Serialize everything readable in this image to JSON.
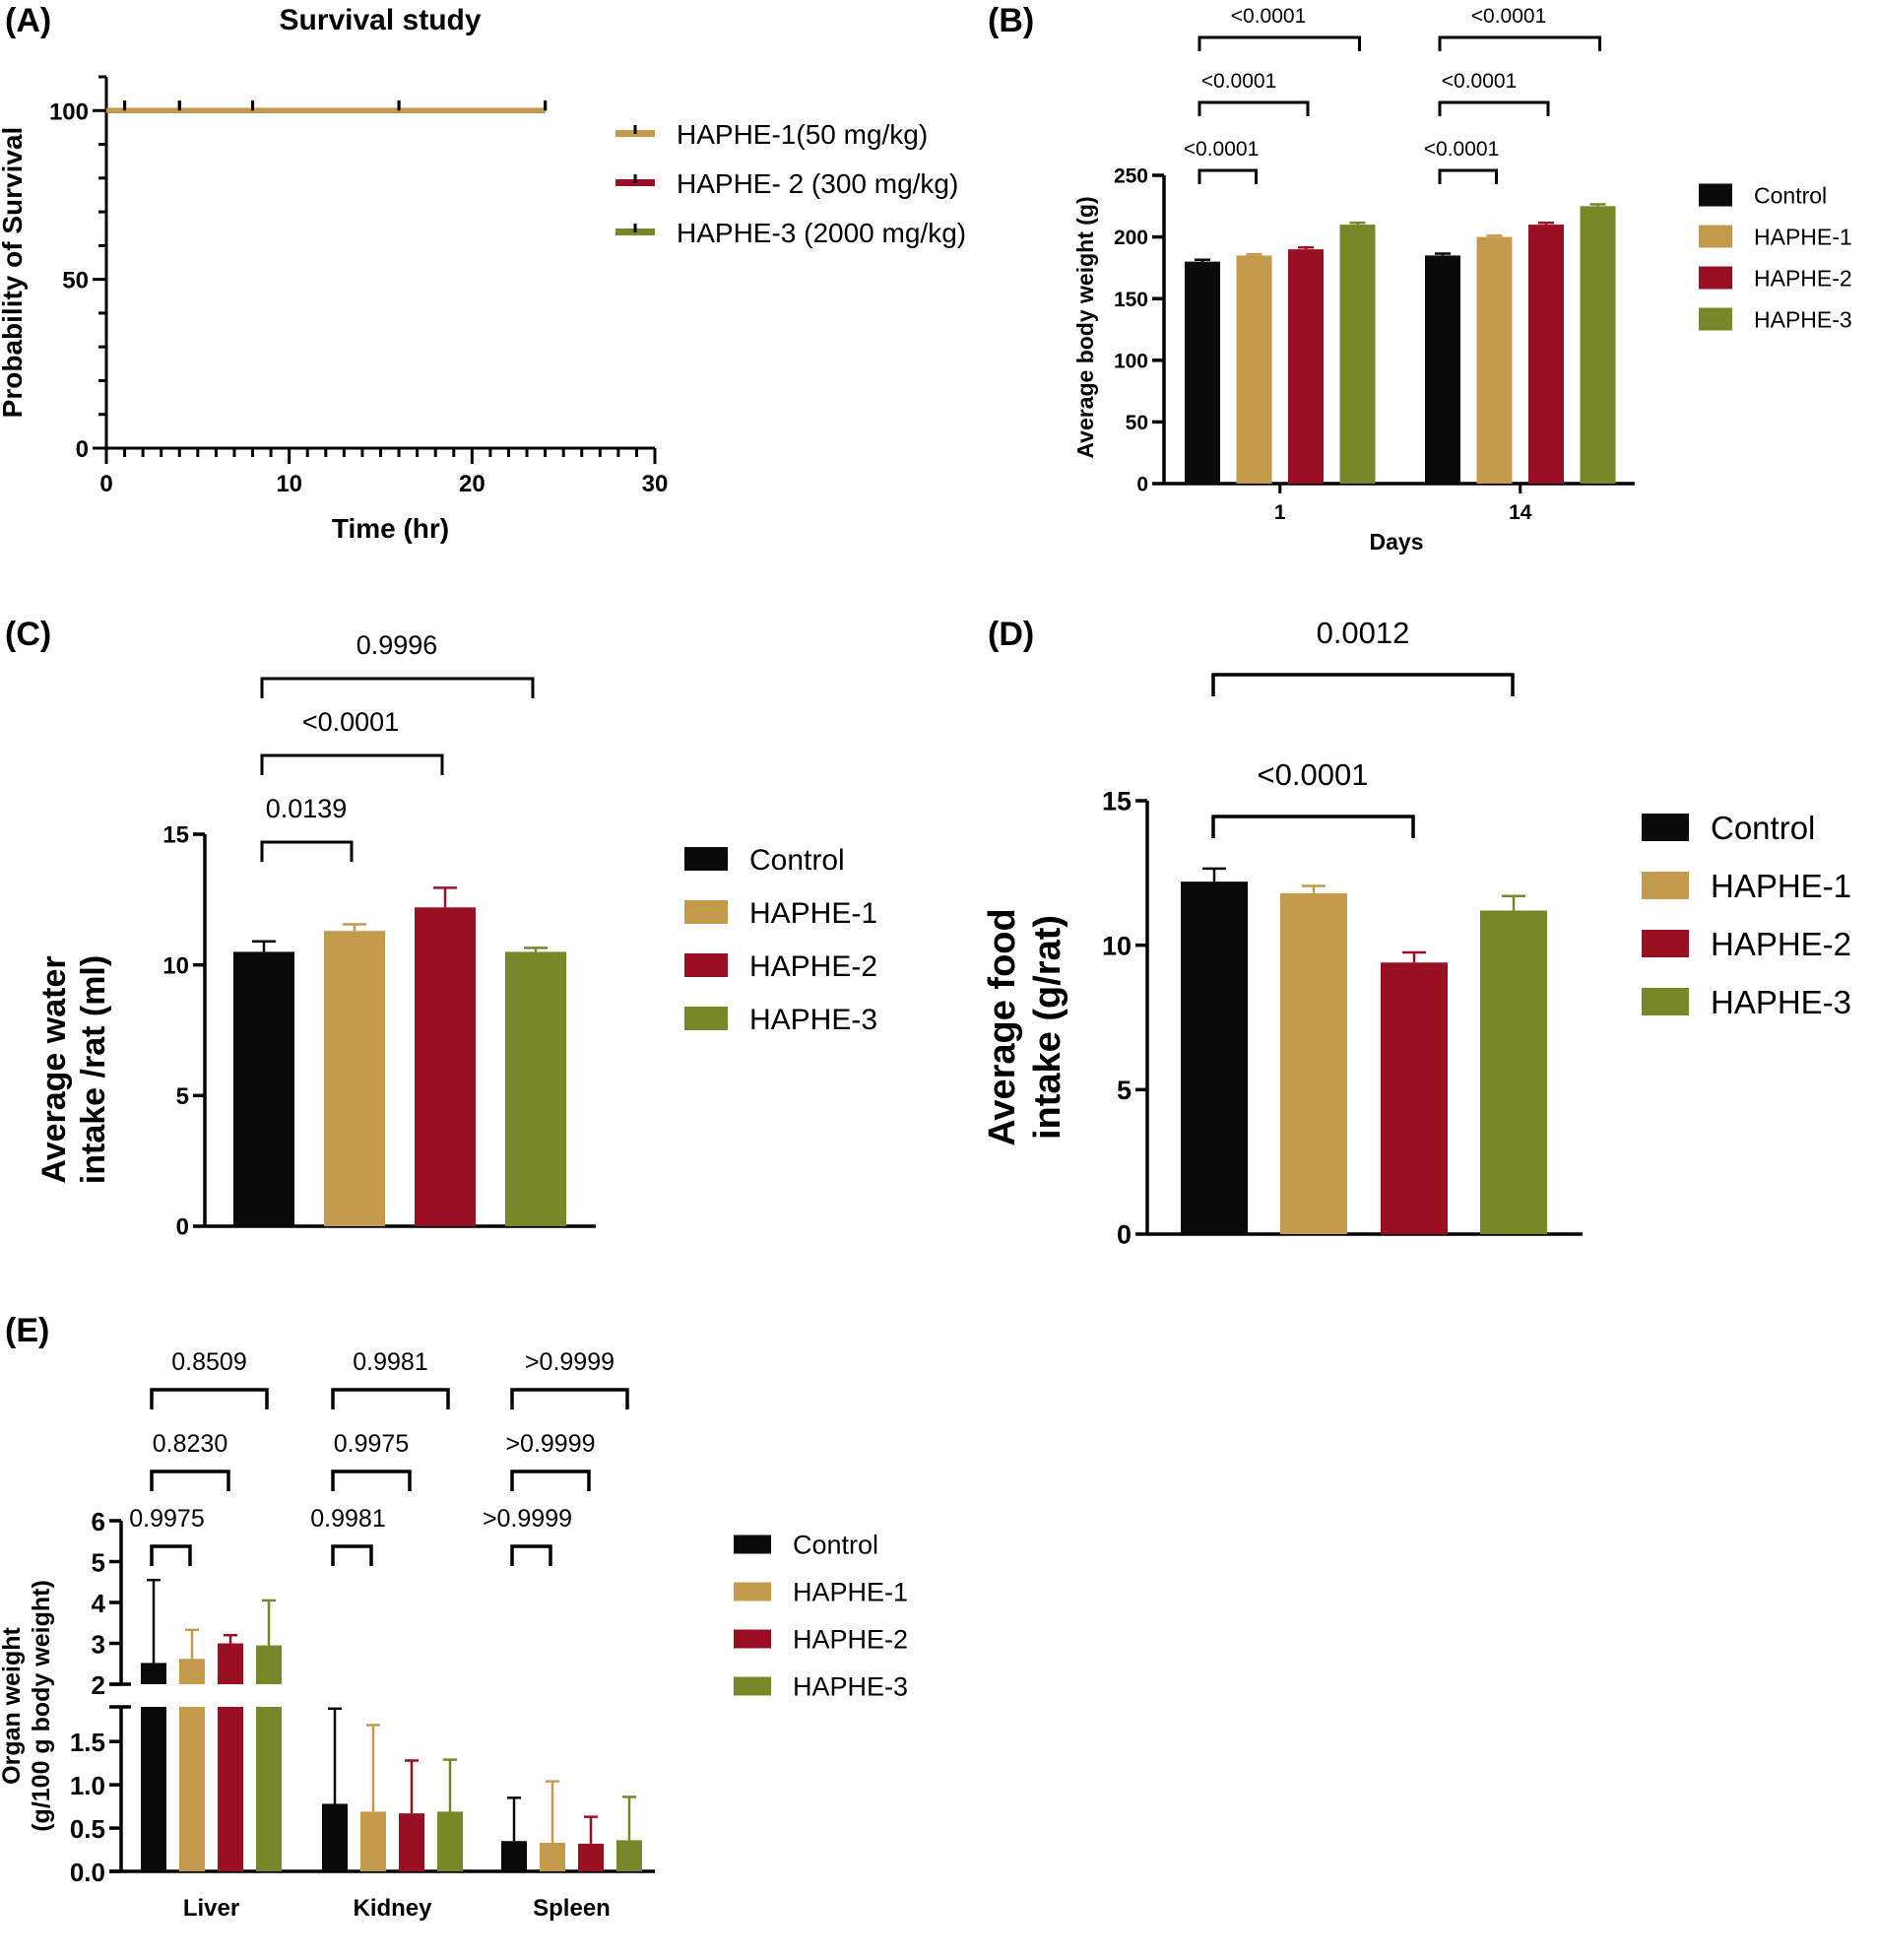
{
  "colors": {
    "Control": "#0a0a0a",
    "HAPHE-1": "#c49b4c",
    "HAPHE-2": "#9a1022",
    "HAPHE-3": "#778828",
    "axis": "#000000"
  },
  "chart_data": [
    {
      "panel": "(A)",
      "type": "line",
      "title": "Survival study",
      "xlabel": "Time (hr)",
      "ylabel": "Probability of Survival",
      "xlim": [
        0,
        30
      ],
      "ylim": [
        0,
        110
      ],
      "xticks": [
        0,
        10,
        20,
        30
      ],
      "yticks": [
        0,
        50,
        100
      ],
      "grid": false,
      "legend_position": "right",
      "series": [
        {
          "name": "HAPHE-1(50 mg/kg)",
          "color_key": "HAPHE-1",
          "x": [
            0,
            24
          ],
          "y": [
            100,
            100
          ],
          "censor_marks_x": [
            1,
            4,
            8,
            16,
            24
          ]
        },
        {
          "name": "HAPHE- 2 (300 mg/kg)",
          "color_key": "HAPHE-2",
          "x": [
            0,
            24
          ],
          "y": [
            100,
            100
          ],
          "censor_marks_x": [
            1,
            4,
            8,
            16,
            24
          ]
        },
        {
          "name": "HAPHE-3 (2000 mg/kg)",
          "color_key": "HAPHE-3",
          "x": [
            0,
            24
          ],
          "y": [
            100,
            100
          ],
          "censor_marks_x": [
            1,
            4,
            8,
            16,
            24
          ]
        }
      ]
    },
    {
      "panel": "(B)",
      "type": "bar",
      "title": "",
      "xlabel": "Days",
      "ylabel": "Average body weight (g)",
      "ylim": [
        0,
        250
      ],
      "yticks": [
        0,
        50,
        100,
        150,
        200,
        250
      ],
      "categories": [
        "1",
        "14"
      ],
      "legend_position": "right",
      "series": [
        {
          "name": "Control",
          "values": [
            180,
            185
          ],
          "errors": [
            1.5,
            1.5
          ]
        },
        {
          "name": "HAPHE-1",
          "values": [
            185,
            200
          ],
          "errors": [
            1,
            1
          ]
        },
        {
          "name": "HAPHE-2",
          "values": [
            190,
            210
          ],
          "errors": [
            1.5,
            1.5
          ]
        },
        {
          "name": "HAPHE-3",
          "values": [
            210,
            225
          ],
          "errors": [
            1.5,
            1.5
          ]
        }
      ],
      "comparisons": [
        {
          "category": "1",
          "from": "Control",
          "to": "HAPHE-1",
          "label": "<0.0001"
        },
        {
          "category": "1",
          "from": "Control",
          "to": "HAPHE-2",
          "label": "<0.0001"
        },
        {
          "category": "1",
          "from": "Control",
          "to": "HAPHE-3",
          "label": "<0.0001"
        },
        {
          "category": "14",
          "from": "Control",
          "to": "HAPHE-1",
          "label": "<0.0001"
        },
        {
          "category": "14",
          "from": "Control",
          "to": "HAPHE-2",
          "label": "<0.0001"
        },
        {
          "category": "14",
          "from": "Control",
          "to": "HAPHE-3",
          "label": "<0.0001"
        }
      ]
    },
    {
      "panel": "(C)",
      "type": "bar",
      "title": "",
      "xlabel": "",
      "ylabel": "Average water intake /rat (ml)",
      "ylabel_lines": [
        "Average water",
        "intake /rat (ml)"
      ],
      "ylim": [
        0,
        15
      ],
      "yticks": [
        0,
        5,
        10,
        15
      ],
      "categories": [
        "Control",
        "HAPHE-1",
        "HAPHE-2",
        "HAPHE-3"
      ],
      "values": [
        10.5,
        11.3,
        12.2,
        10.5
      ],
      "errors": [
        0.4,
        0.25,
        0.75,
        0.15
      ],
      "legend_position": "right",
      "comparisons": [
        {
          "from": "Control",
          "to": "HAPHE-1",
          "label": "0.0139"
        },
        {
          "from": "Control",
          "to": "HAPHE-2",
          "label": "<0.0001"
        },
        {
          "from": "Control",
          "to": "HAPHE-3",
          "label": "0.9996"
        }
      ]
    },
    {
      "panel": "(D)",
      "type": "bar",
      "title": "",
      "xlabel": "",
      "ylabel": "Average food intake (g/rat)",
      "ylabel_lines": [
        "Average food",
        "intake (g/rat)"
      ],
      "ylim": [
        0,
        15
      ],
      "yticks": [
        0,
        5,
        10,
        15
      ],
      "categories": [
        "Control",
        "HAPHE-1",
        "HAPHE-2",
        "HAPHE-3"
      ],
      "values": [
        12.2,
        11.8,
        9.4,
        11.2
      ],
      "errors": [
        0.45,
        0.25,
        0.35,
        0.5
      ],
      "legend_position": "right",
      "comparisons": [
        {
          "from": "Control",
          "to": "HAPHE-2",
          "label": "<0.0001"
        },
        {
          "from": "Control",
          "to": "HAPHE-3",
          "label": "0.0012"
        }
      ]
    },
    {
      "panel": "(E)",
      "type": "bar",
      "title": "",
      "xlabel": "",
      "ylabel": "Organ weight (g/100 g body weight)",
      "ylabel_lines": [
        "Organ weight",
        "(g/100 g body weight)"
      ],
      "axis_break": {
        "lower": [
          0,
          1.9
        ],
        "upper": [
          2,
          6
        ]
      },
      "yticks_lower": [
        "0.0",
        "0.5",
        "1.0",
        "1.5"
      ],
      "yticks_upper": [
        "2",
        "3",
        "4",
        "5",
        "6"
      ],
      "categories": [
        "Liver",
        "Kidney",
        "Spleen"
      ],
      "legend_position": "right",
      "series": [
        {
          "name": "Control",
          "values": [
            2.52,
            0.78,
            0.35
          ],
          "errors": [
            2.03,
            1.1,
            0.5
          ]
        },
        {
          "name": "HAPHE-1",
          "values": [
            2.62,
            0.69,
            0.33
          ],
          "errors": [
            0.71,
            1.0,
            0.71
          ]
        },
        {
          "name": "HAPHE-2",
          "values": [
            3.0,
            0.67,
            0.32
          ],
          "errors": [
            0.2,
            0.61,
            0.31
          ]
        },
        {
          "name": "HAPHE-3",
          "values": [
            2.95,
            0.69,
            0.36
          ],
          "errors": [
            1.1,
            0.6,
            0.5
          ]
        }
      ],
      "comparisons": [
        {
          "category": "Liver",
          "from": "Control",
          "to": "HAPHE-1",
          "label": "0.9975"
        },
        {
          "category": "Liver",
          "from": "Control",
          "to": "HAPHE-2",
          "label": "0.8230"
        },
        {
          "category": "Liver",
          "from": "Control",
          "to": "HAPHE-3",
          "label": "0.8509"
        },
        {
          "category": "Kidney",
          "from": "Control",
          "to": "HAPHE-1",
          "label": "0.9981"
        },
        {
          "category": "Kidney",
          "from": "Control",
          "to": "HAPHE-2",
          "label": "0.9975"
        },
        {
          "category": "Kidney",
          "from": "Control",
          "to": "HAPHE-3",
          "label": "0.9981"
        },
        {
          "category": "Spleen",
          "from": "Control",
          "to": "HAPHE-1",
          "label": ">0.9999"
        },
        {
          "category": "Spleen",
          "from": "Control",
          "to": "HAPHE-2",
          "label": ">0.9999"
        },
        {
          "category": "Spleen",
          "from": "Control",
          "to": "HAPHE-3",
          "label": ">0.9999"
        }
      ]
    }
  ],
  "legend_groups": [
    "Control",
    "HAPHE-1",
    "HAPHE-2",
    "HAPHE-3"
  ]
}
